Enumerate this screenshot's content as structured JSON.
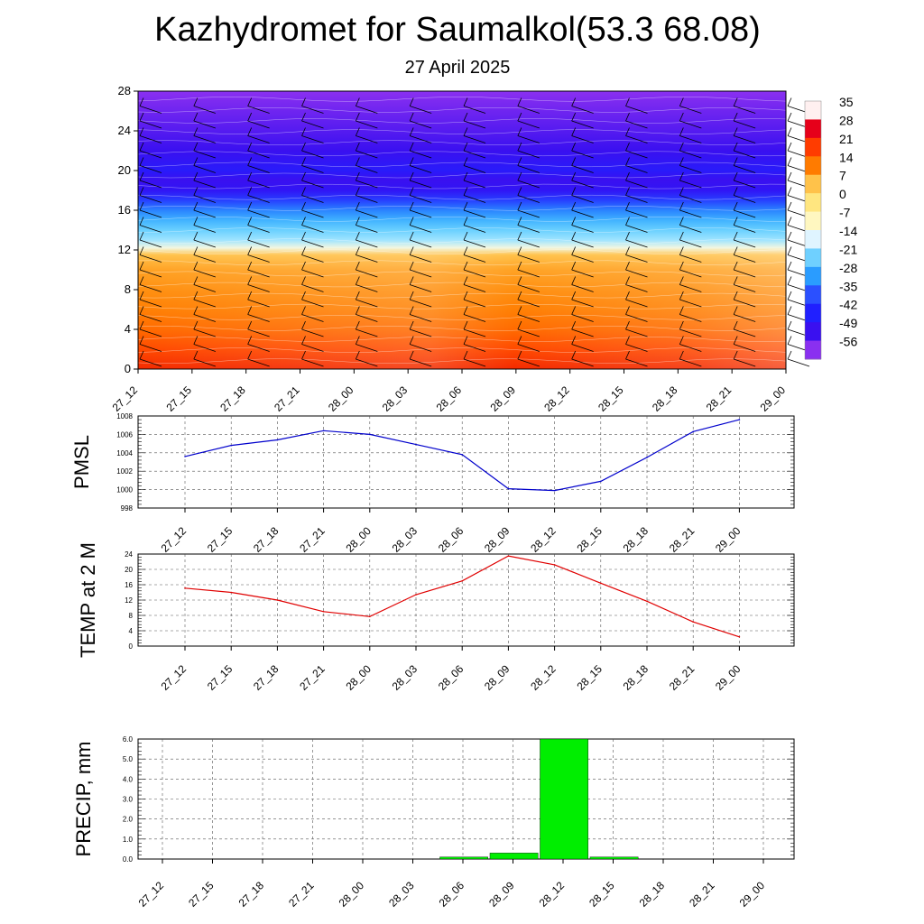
{
  "header": {
    "title": "Kazhydromet for Saumalkol(53.3 68.08)",
    "subtitle": "27 April 2025"
  },
  "chart_data": [
    {
      "type": "heatmap",
      "ylim": [
        0,
        28
      ],
      "yticks": [
        "0",
        "4",
        "8",
        "12",
        "16",
        "20",
        "24",
        "28"
      ],
      "xticks": [
        "27_12",
        "27_15",
        "27_18",
        "27_21",
        "28_00",
        "28_03",
        "28_06",
        "28_09",
        "28_12",
        "28_15",
        "28_18",
        "28_21",
        "29_00"
      ],
      "colorbar": {
        "labels": [
          "35",
          "28",
          "21",
          "14",
          "7",
          "0",
          "-7",
          "-14",
          "-21",
          "-28",
          "-35",
          "-42",
          "-49",
          "-56"
        ],
        "colors": [
          "#fff0f0",
          "#e6001a",
          "#ff3c00",
          "#ff7b00",
          "#ffc24a",
          "#ffe680",
          "#fff7c0",
          "#dff4ff",
          "#6fd0ff",
          "#2a9cff",
          "#2b50ff",
          "#2020ff",
          "#3a10f0",
          "#8a30f0"
        ]
      },
      "temperature_profile": [
        {
          "h": 0,
          "v": 24
        },
        {
          "h": 2,
          "v": 20
        },
        {
          "h": 4,
          "v": 16
        },
        {
          "h": 6,
          "v": 13
        },
        {
          "h": 8,
          "v": 10
        },
        {
          "h": 10,
          "v": 7
        },
        {
          "h": 11.5,
          "v": 3
        },
        {
          "h": 12.2,
          "v": -14
        },
        {
          "h": 13,
          "v": -21
        },
        {
          "h": 14,
          "v": -26
        },
        {
          "h": 15,
          "v": -32
        },
        {
          "h": 16,
          "v": -38
        },
        {
          "h": 17,
          "v": -44
        },
        {
          "h": 18,
          "v": -52
        },
        {
          "h": 19,
          "v": -54
        },
        {
          "h": 20,
          "v": -50
        },
        {
          "h": 22,
          "v": -54
        },
        {
          "h": 24,
          "v": -56
        },
        {
          "h": 26,
          "v": -58
        },
        {
          "h": 28,
          "v": -60
        }
      ],
      "colors": {
        "barb": "#000000",
        "contour": "#ffffff"
      }
    },
    {
      "type": "line",
      "ylabel": "PMSL",
      "ylim": [
        998,
        1008
      ],
      "yticks": [
        "998",
        "1000",
        "1002",
        "1004",
        "1006",
        "1008"
      ],
      "x": [
        "27_12",
        "27_15",
        "27_18",
        "27_21",
        "28_00",
        "28_03",
        "28_06",
        "28_09",
        "28_12",
        "28_15",
        "28_18",
        "28_21",
        "29_00"
      ],
      "values": [
        1003.6,
        1004.8,
        1005.4,
        1006.4,
        1006.0,
        1004.9,
        1003.8,
        1000.1,
        999.9,
        1000.9,
        1003.5,
        1006.3,
        1007.6
      ],
      "color": "#0000cc",
      "grid": true
    },
    {
      "type": "line",
      "ylabel": "TEMP at 2 M",
      "ylim": [
        0,
        24
      ],
      "yticks": [
        "0",
        "4",
        "8",
        "12",
        "16",
        "20",
        "24"
      ],
      "x": [
        "27_12",
        "27_15",
        "27_18",
        "27_21",
        "28_00",
        "28_03",
        "28_06",
        "28_09",
        "28_12",
        "28_15",
        "28_18",
        "28_21",
        "29_00"
      ],
      "values": [
        15.1,
        14.0,
        12.0,
        9.0,
        7.7,
        13.4,
        17.0,
        23.5,
        21.2,
        16.4,
        11.7,
        6.3,
        2.4
      ],
      "color": "#e00000",
      "grid": true
    },
    {
      "type": "bar",
      "ylabel": "PRECIP, mm",
      "ylim": [
        0,
        6
      ],
      "yticks": [
        "0.0",
        "1.0",
        "2.0",
        "3.0",
        "4.0",
        "5.0",
        "6.0"
      ],
      "categories": [
        "27_12",
        "27_15",
        "27_18",
        "27_21",
        "28_00",
        "28_03",
        "28_06",
        "28_09",
        "28_12",
        "28_15",
        "28_18",
        "28_21",
        "29_00"
      ],
      "values": [
        0,
        0,
        0,
        0,
        0,
        0,
        0.1,
        0.3,
        6.0,
        0.1,
        0,
        0,
        0
      ],
      "color": "#00ee00",
      "grid": true
    }
  ]
}
